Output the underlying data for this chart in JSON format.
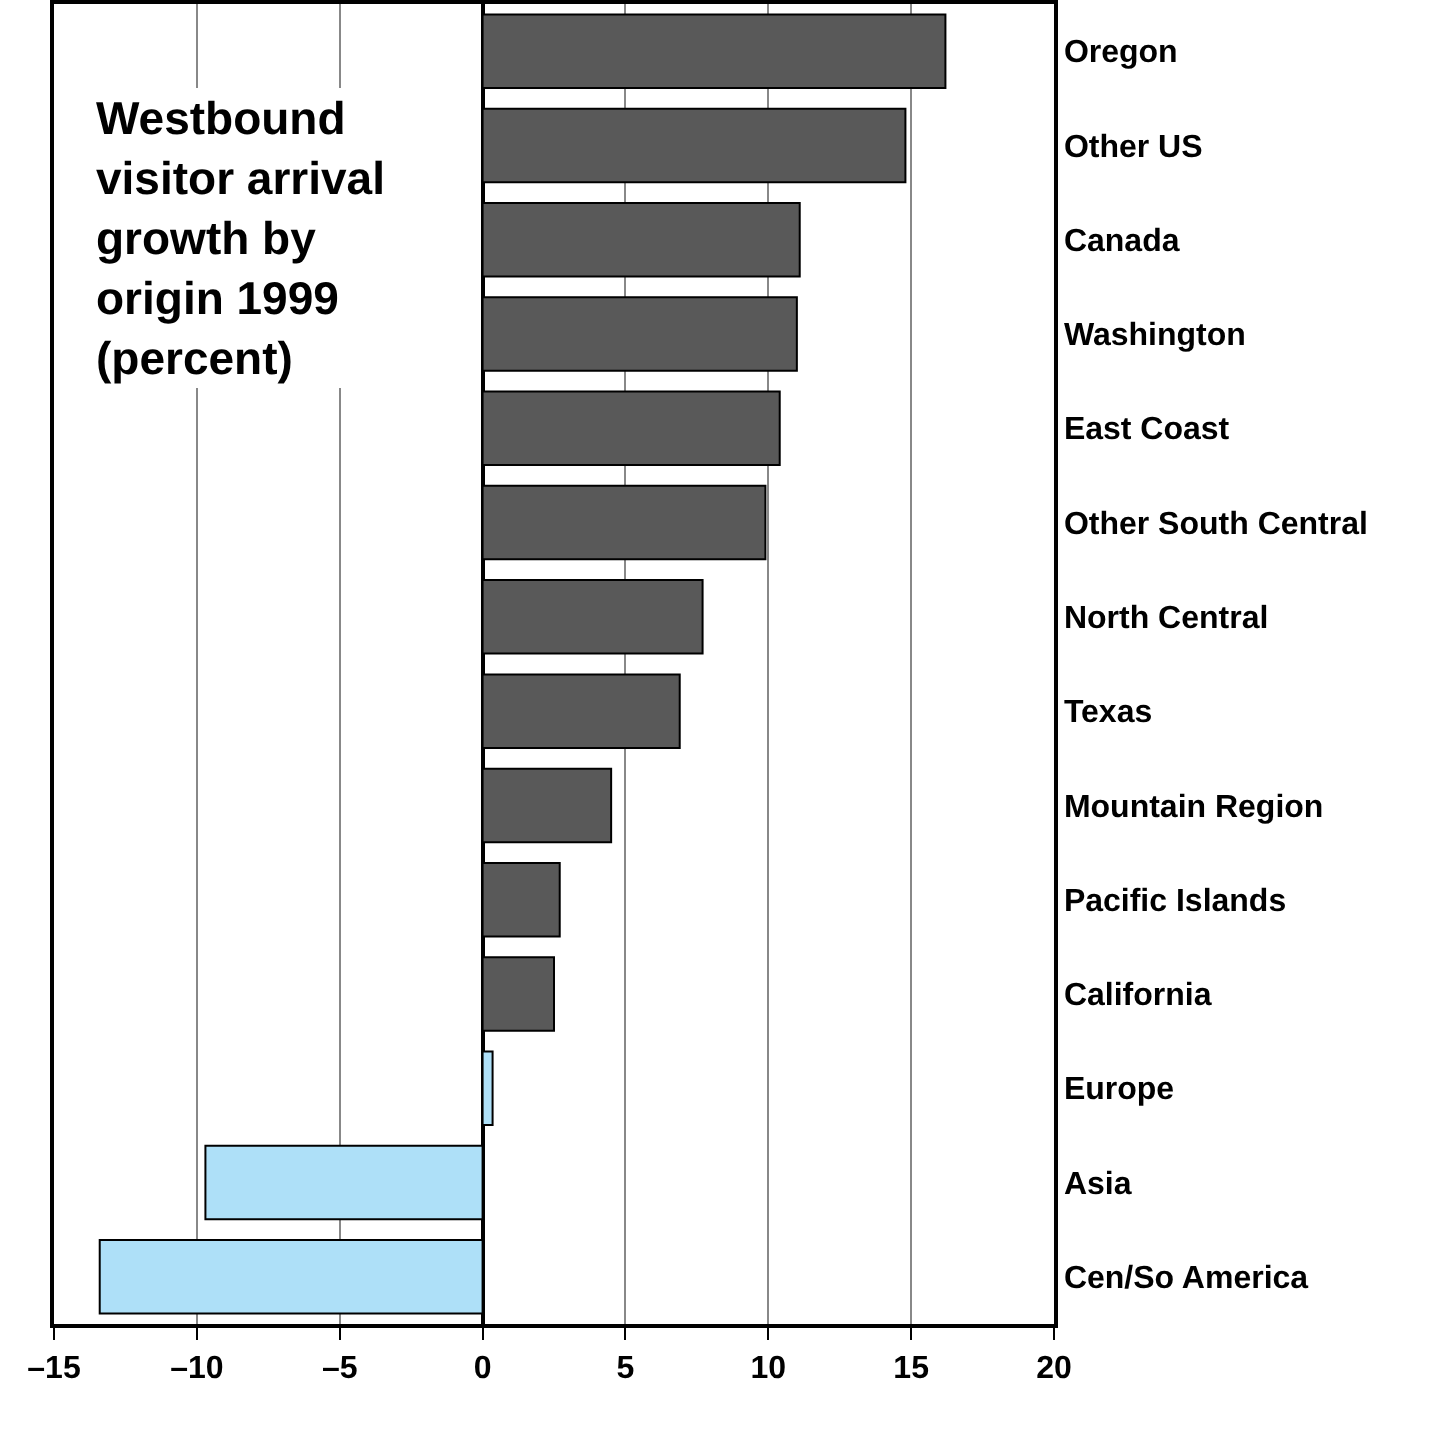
{
  "chart_data": {
    "type": "bar",
    "orientation": "horizontal",
    "title": "Westbound visitor arrival growth by origin 1999 (percent)",
    "categories": [
      "Oregon",
      "Other US",
      "Canada",
      "Washington",
      "East Coast",
      "Other South Central",
      "North Central",
      "Texas",
      "Mountain Region",
      "Pacific Islands",
      "California",
      "Europe",
      "Asia",
      "Cen/So America"
    ],
    "values": [
      16.2,
      14.8,
      11.1,
      11.0,
      10.4,
      9.9,
      7.7,
      6.9,
      4.5,
      2.7,
      2.5,
      0.35,
      -9.7,
      -13.4
    ],
    "colors": [
      "#595959",
      "#595959",
      "#595959",
      "#595959",
      "#595959",
      "#595959",
      "#595959",
      "#595959",
      "#595959",
      "#595959",
      "#595959",
      "#aee0f8",
      "#aee0f8",
      "#aee0f8"
    ],
    "xlim": [
      -15,
      20
    ],
    "xticks": [
      {
        "value": -15,
        "label": "–15"
      },
      {
        "value": -10,
        "label": "–10"
      },
      {
        "value": -5,
        "label": "–5"
      },
      0,
      5,
      10,
      15,
      20
    ],
    "grid": "x"
  }
}
